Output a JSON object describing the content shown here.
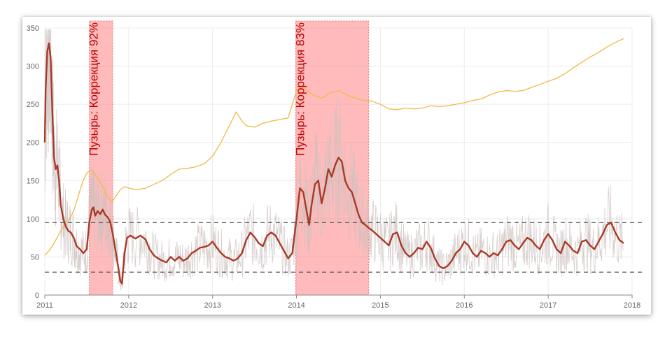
{
  "chart_data": {
    "type": "line",
    "title": "",
    "xlabel": "",
    "ylabel": "",
    "xlim": [
      2011.0,
      2018.0
    ],
    "ylim": [
      0,
      350
    ],
    "x_ticks": [
      "2011",
      "2012",
      "2013",
      "2014",
      "2015",
      "2016",
      "2017",
      "2018"
    ],
    "y_ticks": [
      "0",
      "50",
      "100",
      "150",
      "200",
      "250",
      "300",
      "350"
    ],
    "grid": true,
    "reference_lines": [
      {
        "value": 30,
        "style": "dashed"
      },
      {
        "value": 95,
        "style": "dashed"
      }
    ],
    "highlight_bands": [
      {
        "x0": 2011.53,
        "x1": 2011.81,
        "label": "Пузырь: Коррекция 92%"
      },
      {
        "x0": 2013.99,
        "x1": 2014.86,
        "label": "Пузырь: Коррекция 83%"
      }
    ],
    "series": [
      {
        "style": "orange-line",
        "color": "#f2b84b",
        "points": [
          [
            2011.0,
            52
          ],
          [
            2011.05,
            58
          ],
          [
            2011.1,
            66
          ],
          [
            2011.15,
            76
          ],
          [
            2011.2,
            86
          ],
          [
            2011.25,
            95
          ],
          [
            2011.3,
            100
          ],
          [
            2011.35,
            112
          ],
          [
            2011.4,
            130
          ],
          [
            2011.45,
            148
          ],
          [
            2011.5,
            160
          ],
          [
            2011.55,
            164
          ],
          [
            2011.6,
            158
          ],
          [
            2011.65,
            150
          ],
          [
            2011.7,
            140
          ],
          [
            2011.75,
            128
          ],
          [
            2011.8,
            122
          ],
          [
            2011.85,
            130
          ],
          [
            2011.9,
            138
          ],
          [
            2011.95,
            142
          ],
          [
            2012.0,
            140
          ],
          [
            2012.1,
            138
          ],
          [
            2012.2,
            140
          ],
          [
            2012.3,
            145
          ],
          [
            2012.4,
            150
          ],
          [
            2012.5,
            158
          ],
          [
            2012.6,
            165
          ],
          [
            2012.7,
            166
          ],
          [
            2012.8,
            168
          ],
          [
            2012.9,
            172
          ],
          [
            2013.0,
            182
          ],
          [
            2013.1,
            200
          ],
          [
            2013.2,
            222
          ],
          [
            2013.28,
            240
          ],
          [
            2013.35,
            228
          ],
          [
            2013.4,
            222
          ],
          [
            2013.5,
            220
          ],
          [
            2013.6,
            225
          ],
          [
            2013.7,
            228
          ],
          [
            2013.8,
            230
          ],
          [
            2013.9,
            232
          ],
          [
            2014.0,
            268
          ],
          [
            2014.05,
            272
          ],
          [
            2014.1,
            270
          ],
          [
            2014.2,
            262
          ],
          [
            2014.3,
            258
          ],
          [
            2014.4,
            265
          ],
          [
            2014.5,
            268
          ],
          [
            2014.6,
            262
          ],
          [
            2014.7,
            258
          ],
          [
            2014.8,
            255
          ],
          [
            2014.9,
            254
          ],
          [
            2015.0,
            250
          ],
          [
            2015.1,
            244
          ],
          [
            2015.2,
            243
          ],
          [
            2015.3,
            245
          ],
          [
            2015.4,
            244
          ],
          [
            2015.5,
            245
          ],
          [
            2015.6,
            248
          ],
          [
            2015.7,
            247
          ],
          [
            2015.8,
            248
          ],
          [
            2015.9,
            250
          ],
          [
            2016.0,
            252
          ],
          [
            2016.1,
            255
          ],
          [
            2016.2,
            257
          ],
          [
            2016.3,
            262
          ],
          [
            2016.4,
            266
          ],
          [
            2016.5,
            268
          ],
          [
            2016.6,
            267
          ],
          [
            2016.7,
            268
          ],
          [
            2016.8,
            272
          ],
          [
            2016.9,
            276
          ],
          [
            2017.0,
            280
          ],
          [
            2017.1,
            284
          ],
          [
            2017.2,
            290
          ],
          [
            2017.3,
            298
          ],
          [
            2017.4,
            305
          ],
          [
            2017.5,
            312
          ],
          [
            2017.6,
            318
          ],
          [
            2017.7,
            325
          ],
          [
            2017.8,
            331
          ],
          [
            2017.9,
            336
          ]
        ]
      },
      {
        "style": "red-line",
        "color": "#a83a28",
        "points": [
          [
            2011.0,
            200
          ],
          [
            2011.01,
            270
          ],
          [
            2011.03,
            320
          ],
          [
            2011.05,
            330
          ],
          [
            2011.07,
            310
          ],
          [
            2011.09,
            240
          ],
          [
            2011.11,
            180
          ],
          [
            2011.13,
            165
          ],
          [
            2011.15,
            170
          ],
          [
            2011.17,
            150
          ],
          [
            2011.19,
            118
          ],
          [
            2011.22,
            100
          ],
          [
            2011.25,
            90
          ],
          [
            2011.28,
            84
          ],
          [
            2011.31,
            82
          ],
          [
            2011.35,
            74
          ],
          [
            2011.38,
            64
          ],
          [
            2011.42,
            60
          ],
          [
            2011.46,
            55
          ],
          [
            2011.5,
            60
          ],
          [
            2011.53,
            95
          ],
          [
            2011.56,
            112
          ],
          [
            2011.58,
            115
          ],
          [
            2011.6,
            104
          ],
          [
            2011.63,
            110
          ],
          [
            2011.66,
            106
          ],
          [
            2011.69,
            112
          ],
          [
            2011.72,
            105
          ],
          [
            2011.75,
            102
          ],
          [
            2011.78,
            96
          ],
          [
            2011.81,
            80
          ],
          [
            2011.84,
            60
          ],
          [
            2011.87,
            40
          ],
          [
            2011.9,
            18
          ],
          [
            2011.92,
            15
          ],
          [
            2011.95,
            55
          ],
          [
            2011.98,
            75
          ],
          [
            2012.02,
            78
          ],
          [
            2012.08,
            74
          ],
          [
            2012.14,
            78
          ],
          [
            2012.2,
            73
          ],
          [
            2012.25,
            60
          ],
          [
            2012.3,
            52
          ],
          [
            2012.35,
            48
          ],
          [
            2012.4,
            45
          ],
          [
            2012.45,
            43
          ],
          [
            2012.5,
            50
          ],
          [
            2012.55,
            45
          ],
          [
            2012.6,
            50
          ],
          [
            2012.65,
            45
          ],
          [
            2012.7,
            48
          ],
          [
            2012.75,
            55
          ],
          [
            2012.8,
            58
          ],
          [
            2012.85,
            62
          ],
          [
            2012.9,
            63
          ],
          [
            2012.95,
            65
          ],
          [
            2013.0,
            70
          ],
          [
            2013.05,
            62
          ],
          [
            2013.1,
            55
          ],
          [
            2013.15,
            50
          ],
          [
            2013.2,
            48
          ],
          [
            2013.25,
            45
          ],
          [
            2013.3,
            48
          ],
          [
            2013.35,
            55
          ],
          [
            2013.4,
            72
          ],
          [
            2013.45,
            82
          ],
          [
            2013.5,
            76
          ],
          [
            2013.55,
            68
          ],
          [
            2013.6,
            64
          ],
          [
            2013.65,
            78
          ],
          [
            2013.7,
            82
          ],
          [
            2013.75,
            78
          ],
          [
            2013.8,
            68
          ],
          [
            2013.85,
            58
          ],
          [
            2013.9,
            48
          ],
          [
            2013.95,
            55
          ],
          [
            2014.0,
            100
          ],
          [
            2014.04,
            140
          ],
          [
            2014.08,
            135
          ],
          [
            2014.12,
            110
          ],
          [
            2014.15,
            92
          ],
          [
            2014.18,
            118
          ],
          [
            2014.22,
            145
          ],
          [
            2014.26,
            150
          ],
          [
            2014.3,
            120
          ],
          [
            2014.34,
            140
          ],
          [
            2014.38,
            165
          ],
          [
            2014.42,
            155
          ],
          [
            2014.46,
            170
          ],
          [
            2014.5,
            180
          ],
          [
            2014.54,
            175
          ],
          [
            2014.58,
            150
          ],
          [
            2014.62,
            140
          ],
          [
            2014.66,
            135
          ],
          [
            2014.7,
            120
          ],
          [
            2014.74,
            105
          ],
          [
            2014.78,
            95
          ],
          [
            2014.82,
            92
          ],
          [
            2014.86,
            88
          ],
          [
            2014.9,
            85
          ],
          [
            2014.95,
            80
          ],
          [
            2015.0,
            75
          ],
          [
            2015.05,
            70
          ],
          [
            2015.1,
            65
          ],
          [
            2015.15,
            80
          ],
          [
            2015.2,
            82
          ],
          [
            2015.25,
            65
          ],
          [
            2015.3,
            55
          ],
          [
            2015.35,
            50
          ],
          [
            2015.4,
            55
          ],
          [
            2015.45,
            62
          ],
          [
            2015.5,
            60
          ],
          [
            2015.55,
            70
          ],
          [
            2015.6,
            62
          ],
          [
            2015.65,
            48
          ],
          [
            2015.7,
            38
          ],
          [
            2015.75,
            35
          ],
          [
            2015.8,
            38
          ],
          [
            2015.85,
            45
          ],
          [
            2015.9,
            55
          ],
          [
            2015.95,
            60
          ],
          [
            2016.0,
            70
          ],
          [
            2016.05,
            65
          ],
          [
            2016.1,
            55
          ],
          [
            2016.15,
            50
          ],
          [
            2016.2,
            58
          ],
          [
            2016.25,
            55
          ],
          [
            2016.3,
            50
          ],
          [
            2016.35,
            55
          ],
          [
            2016.4,
            52
          ],
          [
            2016.45,
            60
          ],
          [
            2016.5,
            70
          ],
          [
            2016.55,
            72
          ],
          [
            2016.6,
            65
          ],
          [
            2016.65,
            60
          ],
          [
            2016.7,
            68
          ],
          [
            2016.75,
            75
          ],
          [
            2016.8,
            72
          ],
          [
            2016.85,
            65
          ],
          [
            2016.9,
            60
          ],
          [
            2016.95,
            72
          ],
          [
            2017.0,
            80
          ],
          [
            2017.05,
            72
          ],
          [
            2017.1,
            60
          ],
          [
            2017.15,
            55
          ],
          [
            2017.2,
            70
          ],
          [
            2017.25,
            65
          ],
          [
            2017.3,
            58
          ],
          [
            2017.35,
            55
          ],
          [
            2017.4,
            70
          ],
          [
            2017.45,
            72
          ],
          [
            2017.5,
            65
          ],
          [
            2017.55,
            60
          ],
          [
            2017.6,
            70
          ],
          [
            2017.65,
            80
          ],
          [
            2017.7,
            92
          ],
          [
            2017.75,
            95
          ],
          [
            2017.8,
            82
          ],
          [
            2017.85,
            72
          ],
          [
            2017.9,
            68
          ]
        ]
      }
    ]
  }
}
